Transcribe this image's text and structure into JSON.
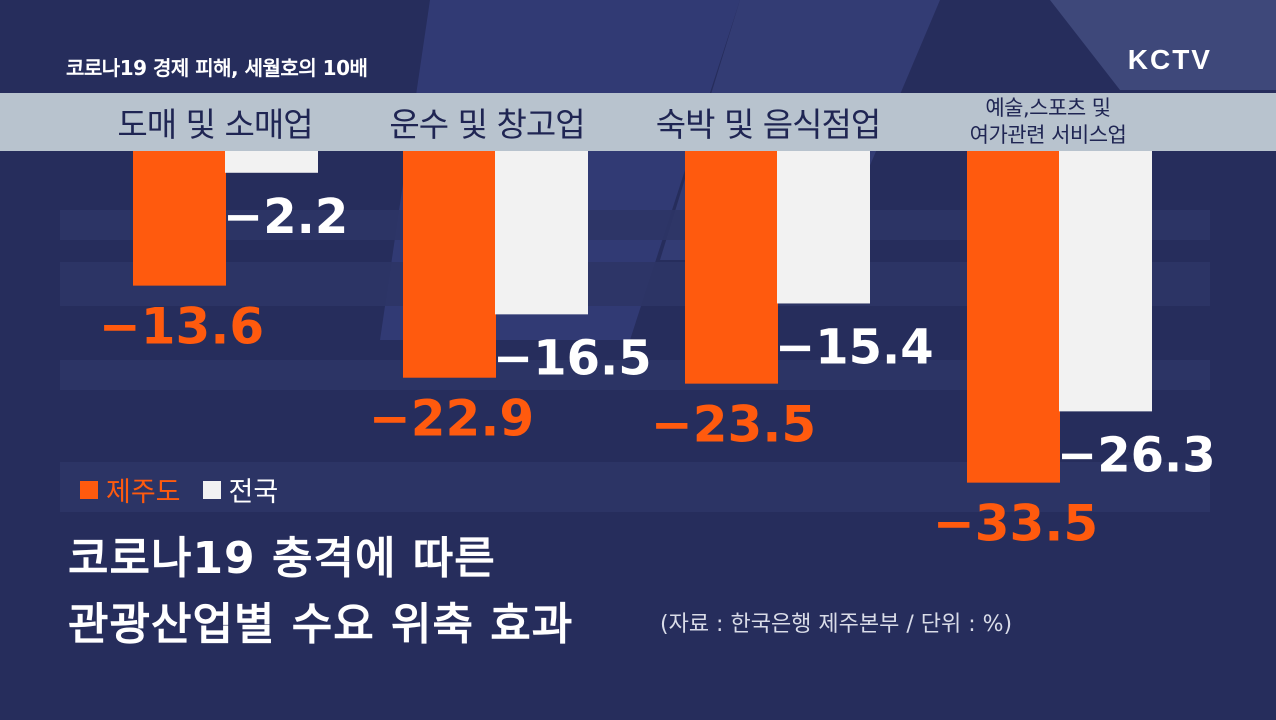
{
  "header": {
    "topic": "코로나19 경제 피해, 세월호의 10배",
    "logo": "KCTV"
  },
  "title_line1": "코로나19 충격에 따른",
  "title_line2": "관광산업별 수요 위축 효과",
  "source": "(자료 : 한국은행 제주본부 / 단위 : %)",
  "colors": {
    "jeju": "#ff5a0e",
    "national": "#f2f2f2",
    "background": "#262d5c",
    "band": "#b8c3ce",
    "category_text": "#1f2553"
  },
  "chart_data": {
    "type": "bar",
    "categories": [
      "도매 및 소매업",
      "운수 및 창고업",
      "숙박 및 음식점업",
      "예술,스포츠 및\n여가관련 서비스업"
    ],
    "series": [
      {
        "name": "제주도",
        "values": [
          -13.6,
          -22.9,
          -23.5,
          -33.5
        ],
        "labels": [
          "−13.6",
          "−22.9",
          "−23.5",
          "−33.5"
        ]
      },
      {
        "name": "전국",
        "values": [
          -2.2,
          -16.5,
          -15.4,
          -26.3
        ],
        "labels": [
          "−2.2",
          "−16.5",
          "−15.4",
          "−26.3"
        ]
      }
    ],
    "ylim": [
      -35,
      0
    ],
    "legend_position": "bottom-left",
    "grid": false
  }
}
